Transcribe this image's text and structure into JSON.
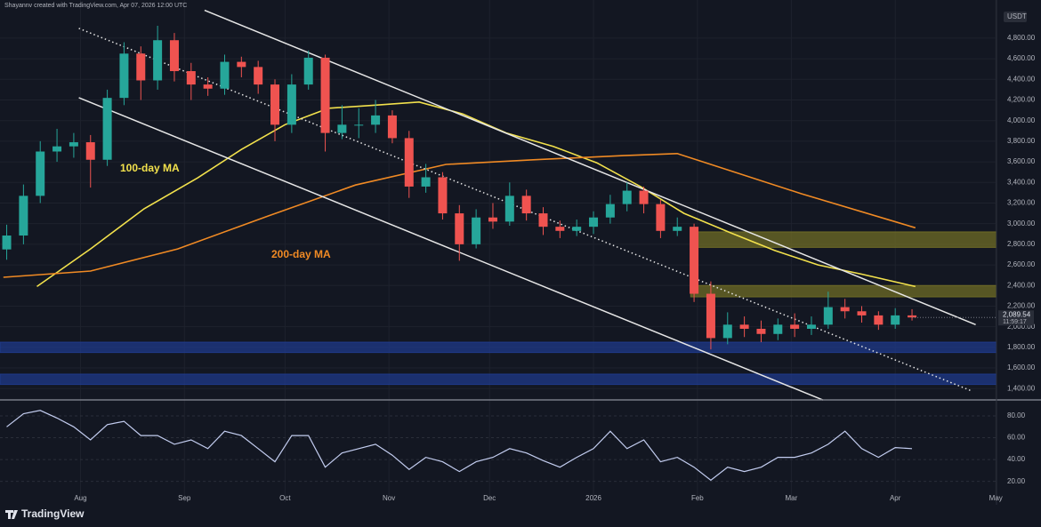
{
  "header": "Shayannv created with TradingView.com, Apr 07, 2026 12:00 UTC",
  "footer": "TradingView",
  "chart_data": {
    "type": "candlestick",
    "currency": "USDT",
    "x": [
      -22,
      -17,
      -12,
      -7,
      -2,
      3,
      8,
      13,
      18,
      23,
      28,
      33,
      38,
      43,
      48,
      53,
      58,
      63,
      68,
      73,
      78,
      83,
      88,
      93,
      98,
      103,
      108,
      113,
      118,
      123,
      128,
      133,
      138,
      143,
      148,
      153,
      158,
      163,
      168,
      173,
      178,
      183,
      188,
      193,
      198,
      203,
      208,
      213,
      218,
      223,
      228,
      233,
      238,
      243,
      248
    ],
    "open": [
      2750,
      2885,
      3270,
      3700,
      3750,
      3790,
      3620,
      4220,
      4650,
      4390,
      4780,
      4480,
      4350,
      4310,
      4570,
      4520,
      4350,
      3960,
      4350,
      4610,
      3880,
      3960,
      3960,
      4050,
      3830,
      3360,
      3450,
      3100,
      2800,
      3060,
      3020,
      3270,
      3100,
      2970,
      2930,
      2970,
      3060,
      3190,
      3320,
      3190,
      2930,
      2970,
      2320,
      1890,
      2020,
      1980,
      1930,
      2020,
      1980,
      2020,
      2190,
      2150,
      2110,
      2020,
      2110
    ],
    "high": [
      2990,
      3380,
      3800,
      3920,
      3880,
      3860,
      4300,
      4760,
      4720,
      4920,
      4850,
      4560,
      4420,
      4640,
      4620,
      4580,
      4400,
      4450,
      4680,
      4640,
      4150,
      4120,
      4200,
      4100,
      3900,
      3580,
      3500,
      3180,
      3140,
      3200,
      3400,
      3330,
      3160,
      3030,
      3040,
      3120,
      3280,
      3400,
      3360,
      3230,
      3060,
      3000,
      2440,
      2140,
      2100,
      2060,
      2080,
      2130,
      2100,
      2340,
      2270,
      2200,
      2150,
      2180,
      2170
    ],
    "low": [
      2650,
      2800,
      3200,
      3600,
      3640,
      3350,
      3560,
      4150,
      4200,
      4300,
      4380,
      4200,
      4240,
      4250,
      4420,
      4260,
      3800,
      3880,
      4300,
      3700,
      3820,
      3830,
      3880,
      3780,
      3250,
      3300,
      3040,
      2640,
      2760,
      2950,
      2980,
      3030,
      2890,
      2860,
      2880,
      2900,
      3000,
      3120,
      3100,
      2860,
      2880,
      2240,
      1780,
      1830,
      1900,
      1850,
      1870,
      1900,
      1920,
      1980,
      2080,
      2040,
      1970,
      1980,
      2060
    ],
    "close": [
      2885,
      3270,
      3700,
      3750,
      3790,
      3620,
      4220,
      4650,
      4390,
      4780,
      4480,
      4350,
      4310,
      4570,
      4520,
      4350,
      3960,
      4350,
      4610,
      3880,
      3960,
      3960,
      4050,
      3830,
      3360,
      3450,
      3100,
      2800,
      3060,
      3020,
      3270,
      3100,
      2970,
      2930,
      2970,
      3060,
      3190,
      3320,
      3190,
      2930,
      2970,
      2320,
      1890,
      2020,
      1980,
      1930,
      2020,
      1980,
      2020,
      2190,
      2150,
      2110,
      2020,
      2110,
      2090
    ],
    "up_color": "#26a69a",
    "down_color": "#ef5350",
    "xlim": [
      -24,
      273.2
    ],
    "xticks": [
      {
        "value": 0,
        "label": "Aug"
      },
      {
        "value": 31,
        "label": "Sep"
      },
      {
        "value": 61,
        "label": "Oct"
      },
      {
        "value": 92,
        "label": "Nov"
      },
      {
        "value": 122,
        "label": "Dec"
      },
      {
        "value": 153,
        "label": "2026"
      },
      {
        "value": 184,
        "label": "Feb"
      },
      {
        "value": 212,
        "label": "Mar"
      },
      {
        "value": 243,
        "label": "Apr"
      },
      {
        "value": 273,
        "label": "May"
      }
    ],
    "ylim": [
      1290,
      5170
    ],
    "yticks": [
      {
        "value": 1400,
        "label": "1,400.00"
      },
      {
        "value": 1600,
        "label": "1,600.00"
      },
      {
        "value": 1800,
        "label": "1,800.00"
      },
      {
        "value": 2000,
        "label": "2,000.00"
      },
      {
        "value": 2200,
        "label": "2,200.00"
      },
      {
        "value": 2400,
        "label": "2,400.00"
      },
      {
        "value": 2600,
        "label": "2,600.00"
      },
      {
        "value": 2800,
        "label": "2,800.00"
      },
      {
        "value": 3000,
        "label": "3,000.00"
      },
      {
        "value": 3200,
        "label": "3,200.00"
      },
      {
        "value": 3400,
        "label": "3,400.00"
      },
      {
        "value": 3600,
        "label": "3,600.00"
      },
      {
        "value": 3800,
        "label": "3,800.00"
      },
      {
        "value": 4000,
        "label": "4,000.00"
      },
      {
        "value": 4200,
        "label": "4,200.00"
      },
      {
        "value": 4400,
        "label": "4,400.00"
      },
      {
        "value": 4600,
        "label": "4,600.00"
      },
      {
        "value": 4800,
        "label": "4,800.00"
      }
    ],
    "grid": true,
    "series": [
      {
        "name": "100-day MA",
        "color": "#f2e14c",
        "x": [
          -13,
          3,
          19,
          35,
          48,
          61,
          74,
          88,
          101,
          114,
          127,
          141,
          154,
          167,
          180,
          194,
          207,
          220,
          233,
          249
        ],
        "values": [
          2390,
          2755,
          3145,
          3445,
          3720,
          3960,
          4120,
          4150,
          4180,
          4065,
          3880,
          3750,
          3590,
          3360,
          3100,
          2910,
          2740,
          2600,
          2510,
          2390
        ]
      },
      {
        "name": "200-day MA",
        "color": "#f08a24",
        "x": [
          -23,
          3,
          29,
          56,
          82,
          109,
          135,
          162,
          178,
          188,
          215,
          249
        ],
        "values": [
          2480,
          2540,
          2755,
          3075,
          3375,
          3575,
          3620,
          3660,
          3680,
          3575,
          3290,
          2960
        ]
      }
    ],
    "zones": [
      {
        "from": 2770,
        "to": 2920,
        "x_from": 182,
        "color": "#6f6c26"
      },
      {
        "from": 2290,
        "to": 2400,
        "x_from": 182,
        "color": "#6f6c26"
      },
      {
        "from": 1750,
        "to": 1850,
        "color": "#1f3a8a"
      },
      {
        "from": 1440,
        "to": 1540,
        "color": "#1f3a8a"
      }
    ],
    "trendlines": [
      {
        "x": [
          37,
          267
        ],
        "y": [
          5070,
          2020
        ],
        "style": "solid",
        "color": "#e6e6e6"
      },
      {
        "x": [
          -0.5,
          221.5
        ],
        "y": [
          4222,
          1288
        ],
        "style": "solid",
        "color": "#e6e6e6"
      },
      {
        "x": [
          -0.5,
          266
        ],
        "y": [
          4895,
          1374
        ],
        "style": "dotted",
        "color": "#e6e6e6"
      }
    ],
    "last_price": {
      "value": 2089.54,
      "label": "2,089.54"
    },
    "countdown": "11:59:17",
    "rsi": {
      "values": [
        70,
        82,
        85,
        78,
        70,
        58,
        72,
        75,
        62,
        62,
        54,
        58,
        50,
        66,
        62,
        50,
        38,
        62,
        62,
        33,
        46,
        50,
        54,
        44,
        31,
        42,
        38,
        29,
        38,
        42,
        50,
        46,
        39,
        33,
        42,
        50,
        66,
        50,
        58,
        38,
        42,
        33,
        21,
        33,
        29,
        33,
        42,
        42,
        46,
        54,
        66,
        50,
        42,
        51,
        50
      ],
      "color": "#c3cdf0",
      "ylim": [
        1,
        93
      ],
      "yticks": [
        {
          "value": 80,
          "label": "80.00"
        },
        {
          "value": 60,
          "label": "60.00"
        },
        {
          "value": 40,
          "label": "40.00"
        },
        {
          "value": 20,
          "label": "20.00"
        }
      ]
    }
  }
}
